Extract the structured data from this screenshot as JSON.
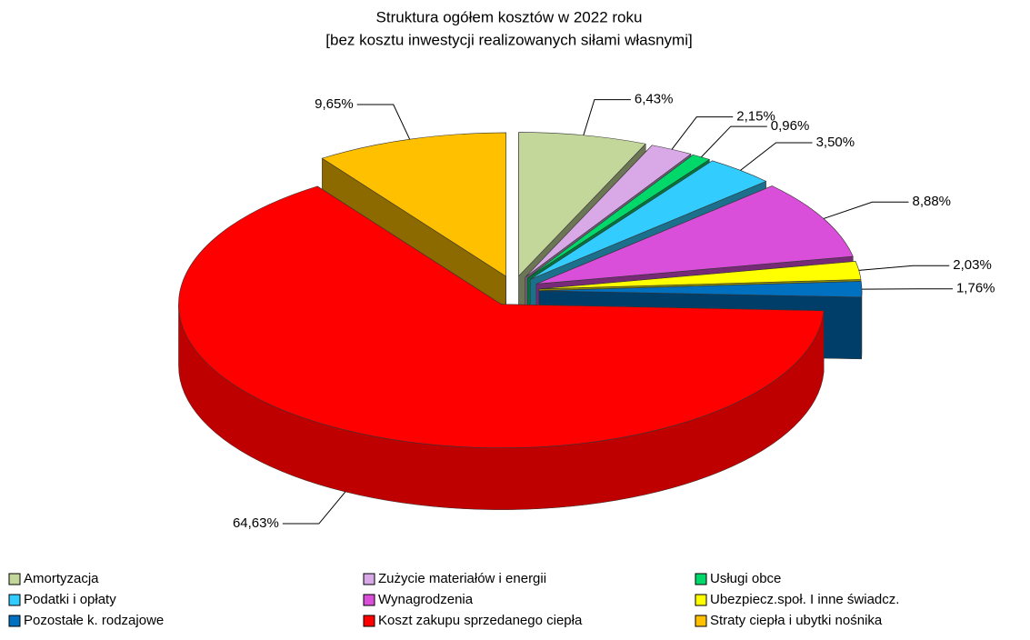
{
  "chart_data": {
    "type": "pie",
    "title": "Struktura ogółem kosztów  w 2022 roku",
    "subtitle": "[bez kosztu inwestycji realizowanych siłami własnymi]",
    "categories": [
      "Amortyzacja",
      "Zużycie materiałów i energii",
      "Usługi obce",
      "Podatki i opłaty",
      "Wynagrodzenia",
      "Ubezpiecz.społ. I inne świadcz.",
      "Pozostałe k. rodzajowe",
      "Koszt zakupu sprzedanego ciepła",
      "Straty ciepła i ubytki nośnika"
    ],
    "values": [
      6.43,
      2.15,
      0.96,
      3.5,
      8.88,
      2.03,
      1.76,
      64.63,
      9.65
    ],
    "value_labels": [
      "6,43%",
      "2,15%",
      "0,96%",
      "3,50%",
      "8,88%",
      "2,03%",
      "1,76%",
      "64,63%",
      "9,65%"
    ],
    "colors": [
      "#c4d79b",
      "#d9a8e6",
      "#00d86a",
      "#33ccff",
      "#d94fd9",
      "#ffff00",
      "#0070c0",
      "#ff0000",
      "#ffc000"
    ],
    "legend": "bottom"
  }
}
